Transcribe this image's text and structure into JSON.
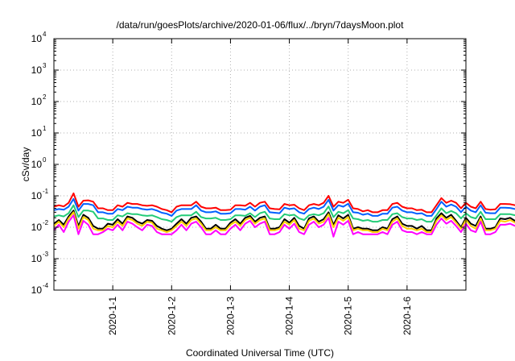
{
  "chart_data": {
    "type": "line",
    "title": "/data/run/goesPlots/archive/2020-01-06/flux/../bryn/7daysMoon.plot",
    "xlabel": "Coordinated Universal Time (UTC)",
    "ylabel": "cSv/day",
    "yscale": "log",
    "ylim": [
      0.0001,
      10000
    ],
    "y_ticks": [
      {
        "base": "10",
        "exp": "4"
      },
      {
        "base": "10",
        "exp": "3"
      },
      {
        "base": "10",
        "exp": "2"
      },
      {
        "base": "10",
        "exp": "1"
      },
      {
        "base": "10",
        "exp": "0"
      },
      {
        "base": "10",
        "exp": "-1"
      },
      {
        "base": "10",
        "exp": "-2"
      },
      {
        "base": "10",
        "exp": "-3"
      },
      {
        "base": "10",
        "exp": "-4"
      }
    ],
    "x_range": [
      "2019-12-31T00:00",
      "2020-01-07T00:00"
    ],
    "x_ticks": [
      "2020-1-1",
      "2020-1-2",
      "2020-1-3",
      "2020-1-4",
      "2020-1-5",
      "2020-1-6"
    ],
    "grid": true,
    "sample_interval_hours": 2,
    "series": [
      {
        "color": "#ff0000",
        "values": [
          0.045,
          0.05,
          0.046,
          0.06,
          0.12,
          0.045,
          0.07,
          0.072,
          0.065,
          0.04,
          0.04,
          0.035,
          0.035,
          0.05,
          0.045,
          0.06,
          0.055,
          0.055,
          0.05,
          0.048,
          0.05,
          0.045,
          0.038,
          0.035,
          0.03,
          0.045,
          0.05,
          0.05,
          0.05,
          0.065,
          0.045,
          0.04,
          0.04,
          0.042,
          0.035,
          0.035,
          0.036,
          0.05,
          0.05,
          0.048,
          0.06,
          0.045,
          0.06,
          0.065,
          0.04,
          0.038,
          0.037,
          0.055,
          0.05,
          0.052,
          0.04,
          0.035,
          0.05,
          0.055,
          0.05,
          0.06,
          0.1,
          0.045,
          0.065,
          0.06,
          0.075,
          0.04,
          0.038,
          0.032,
          0.035,
          0.03,
          0.03,
          0.035,
          0.035,
          0.055,
          0.06,
          0.045,
          0.04,
          0.04,
          0.035,
          0.036,
          0.03,
          0.03,
          0.05,
          0.085,
          0.06,
          0.07,
          0.06,
          0.04,
          0.06,
          0.045,
          0.04,
          0.065,
          0.038,
          0.036,
          0.037,
          0.055,
          0.055,
          0.054,
          0.05,
          0.05,
          0.045,
          0.04,
          0.035,
          0.05,
          0.05,
          0.035,
          0.035,
          0.035,
          0.03,
          0.032,
          0.028,
          0.025,
          0.025,
          0.025,
          0.05,
          0.05,
          0.045,
          0.06,
          0.07,
          0.06,
          0.062,
          0.085,
          0.065,
          0.055,
          0.065,
          0.07,
          0.05,
          0.05,
          0.045,
          0.03,
          0.045,
          0.04,
          0.03,
          0.03,
          0.04,
          0.04,
          0.035,
          0.03,
          0.045,
          0.035,
          0.035,
          0.04,
          0.045,
          0.05,
          0.055,
          0.06,
          0.065,
          0.055,
          0.05,
          0.045,
          0.04,
          0.042,
          0.04,
          0.045,
          0.042,
          0.04,
          0.045,
          0.05,
          0.05
        ]
      },
      {
        "color": "#0060ff",
        "values": [
          0.035,
          0.038,
          0.036,
          0.045,
          0.08,
          0.034,
          0.055,
          0.055,
          0.05,
          0.03,
          0.03,
          0.027,
          0.027,
          0.038,
          0.035,
          0.045,
          0.042,
          0.042,
          0.038,
          0.036,
          0.038,
          0.034,
          0.029,
          0.027,
          0.023,
          0.034,
          0.038,
          0.038,
          0.038,
          0.05,
          0.034,
          0.03,
          0.03,
          0.032,
          0.027,
          0.027,
          0.028,
          0.038,
          0.038,
          0.036,
          0.045,
          0.034,
          0.045,
          0.05,
          0.03,
          0.029,
          0.028,
          0.042,
          0.038,
          0.04,
          0.03,
          0.027,
          0.038,
          0.042,
          0.038,
          0.045,
          0.075,
          0.034,
          0.05,
          0.045,
          0.056,
          0.03,
          0.029,
          0.025,
          0.027,
          0.023,
          0.023,
          0.027,
          0.027,
          0.042,
          0.045,
          0.034,
          0.03,
          0.03,
          0.027,
          0.028,
          0.023,
          0.023,
          0.038,
          0.065,
          0.045,
          0.053,
          0.045,
          0.03,
          0.045,
          0.034,
          0.03,
          0.05,
          0.029,
          0.028,
          0.028,
          0.042,
          0.042,
          0.041,
          0.038,
          0.038,
          0.034,
          0.03,
          0.027,
          0.038,
          0.038,
          0.027,
          0.027,
          0.027,
          0.023,
          0.025,
          0.021,
          0.019,
          0.019,
          0.019,
          0.038,
          0.038,
          0.034,
          0.045,
          0.053,
          0.045,
          0.047,
          0.065,
          0.05,
          0.042,
          0.05,
          0.053,
          0.038,
          0.038,
          0.034,
          0.023,
          0.034,
          0.03,
          0.023,
          0.023,
          0.03,
          0.03,
          0.027,
          0.023,
          0.034,
          0.027,
          0.027,
          0.03,
          0.034,
          0.038,
          0.042,
          0.045,
          0.05,
          0.042,
          0.038,
          0.034,
          0.03,
          0.032,
          0.03,
          0.034,
          0.032,
          0.03,
          0.034,
          0.038,
          0.038
        ]
      },
      {
        "color": "#22cc77",
        "values": [
          0.022,
          0.024,
          0.022,
          0.028,
          0.05,
          0.021,
          0.034,
          0.034,
          0.031,
          0.019,
          0.019,
          0.017,
          0.017,
          0.024,
          0.022,
          0.028,
          0.026,
          0.026,
          0.024,
          0.023,
          0.024,
          0.021,
          0.018,
          0.017,
          0.015,
          0.021,
          0.024,
          0.024,
          0.024,
          0.031,
          0.021,
          0.019,
          0.019,
          0.02,
          0.017,
          0.017,
          0.018,
          0.024,
          0.024,
          0.023,
          0.028,
          0.021,
          0.028,
          0.031,
          0.019,
          0.018,
          0.018,
          0.026,
          0.024,
          0.025,
          0.019,
          0.017,
          0.024,
          0.026,
          0.024,
          0.028,
          0.046,
          0.021,
          0.031,
          0.028,
          0.035,
          0.019,
          0.018,
          0.016,
          0.017,
          0.015,
          0.015,
          0.017,
          0.017,
          0.026,
          0.028,
          0.021,
          0.019,
          0.019,
          0.017,
          0.018,
          0.015,
          0.015,
          0.024,
          0.04,
          0.028,
          0.033,
          0.028,
          0.019,
          0.028,
          0.021,
          0.019,
          0.031,
          0.018,
          0.018,
          0.018,
          0.026,
          0.026,
          0.026,
          0.024,
          0.024,
          0.021,
          0.019,
          0.017,
          0.024,
          0.024,
          0.017,
          0.017,
          0.017,
          0.015,
          0.016,
          0.014,
          0.013,
          0.013,
          0.013,
          0.024,
          0.024,
          0.021,
          0.028,
          0.033,
          0.028,
          0.029,
          0.04,
          0.031,
          0.026,
          0.031,
          0.033,
          0.024,
          0.024,
          0.021,
          0.015,
          0.021,
          0.019,
          0.015,
          0.015,
          0.019,
          0.019,
          0.017,
          0.015,
          0.021,
          0.017,
          0.017,
          0.019,
          0.021,
          0.024,
          0.026,
          0.028,
          0.031,
          0.026,
          0.024,
          0.021,
          0.019,
          0.02,
          0.019,
          0.021,
          0.02,
          0.019,
          0.021,
          0.024,
          0.024
        ]
      },
      {
        "color": "#000000",
        "values": [
          0.013,
          0.017,
          0.012,
          0.022,
          0.034,
          0.011,
          0.025,
          0.02,
          0.011,
          0.009,
          0.009,
          0.013,
          0.012,
          0.018,
          0.013,
          0.022,
          0.02,
          0.015,
          0.013,
          0.017,
          0.016,
          0.011,
          0.009,
          0.008,
          0.009,
          0.013,
          0.018,
          0.013,
          0.02,
          0.022,
          0.015,
          0.009,
          0.009,
          0.012,
          0.009,
          0.009,
          0.014,
          0.018,
          0.013,
          0.02,
          0.023,
          0.015,
          0.02,
          0.022,
          0.009,
          0.009,
          0.01,
          0.018,
          0.014,
          0.02,
          0.011,
          0.009,
          0.019,
          0.022,
          0.015,
          0.018,
          0.03,
          0.012,
          0.024,
          0.019,
          0.025,
          0.009,
          0.01,
          0.009,
          0.009,
          0.008,
          0.008,
          0.01,
          0.009,
          0.018,
          0.022,
          0.013,
          0.011,
          0.011,
          0.009,
          0.011,
          0.008,
          0.008,
          0.019,
          0.028,
          0.02,
          0.025,
          0.016,
          0.01,
          0.02,
          0.013,
          0.011,
          0.022,
          0.009,
          0.009,
          0.01,
          0.019,
          0.018,
          0.02,
          0.016,
          0.018,
          0.013,
          0.011,
          0.009,
          0.018,
          0.016,
          0.009,
          0.009,
          0.01,
          0.008,
          0.009,
          0.008,
          0.009,
          0.011,
          0.009,
          0.02,
          0.017,
          0.013,
          0.019,
          0.022,
          0.018,
          0.02,
          0.026,
          0.019,
          0.016,
          0.02,
          0.024,
          0.016,
          0.016,
          0.013,
          0.008,
          0.013,
          0.011,
          0.009,
          0.009,
          0.012,
          0.011,
          0.009,
          0.009,
          0.015,
          0.01,
          0.009,
          0.012,
          0.014,
          0.017,
          0.018,
          0.02,
          0.022,
          0.016,
          0.014,
          0.012,
          0.011,
          0.011,
          0.01,
          0.012,
          0.011,
          0.01,
          0.012,
          0.014,
          0.014
        ]
      },
      {
        "color": "#ffd000",
        "values": [
          0.011,
          0.015,
          0.01,
          0.019,
          0.03,
          0.009,
          0.021,
          0.017,
          0.009,
          0.008,
          0.008,
          0.011,
          0.01,
          0.015,
          0.011,
          0.019,
          0.017,
          0.013,
          0.011,
          0.015,
          0.014,
          0.009,
          0.008,
          0.007,
          0.008,
          0.011,
          0.015,
          0.011,
          0.017,
          0.019,
          0.013,
          0.008,
          0.008,
          0.01,
          0.008,
          0.008,
          0.012,
          0.015,
          0.011,
          0.017,
          0.02,
          0.013,
          0.017,
          0.019,
          0.008,
          0.008,
          0.009,
          0.015,
          0.012,
          0.017,
          0.009,
          0.008,
          0.016,
          0.019,
          0.013,
          0.015,
          0.026,
          0.01,
          0.02,
          0.016,
          0.021,
          0.008,
          0.009,
          0.008,
          0.008,
          0.007,
          0.007,
          0.009,
          0.008,
          0.015,
          0.019,
          0.011,
          0.009,
          0.009,
          0.008,
          0.009,
          0.007,
          0.007,
          0.016,
          0.024,
          0.017,
          0.021,
          0.014,
          0.009,
          0.017,
          0.011,
          0.009,
          0.019,
          0.008,
          0.008,
          0.009,
          0.016,
          0.015,
          0.017,
          0.014,
          0.015,
          0.011,
          0.009,
          0.008,
          0.015,
          0.014,
          0.008,
          0.008,
          0.009,
          0.007,
          0.008,
          0.007,
          0.008,
          0.009,
          0.008,
          0.017,
          0.015,
          0.011,
          0.016,
          0.019,
          0.015,
          0.017,
          0.022,
          0.016,
          0.014,
          0.017,
          0.02,
          0.014,
          0.014,
          0.011,
          0.007,
          0.011,
          0.009,
          0.008,
          0.008,
          0.01,
          0.009,
          0.008,
          0.008,
          0.013,
          0.009,
          0.008,
          0.01,
          0.012,
          0.015,
          0.015,
          0.017,
          0.019,
          0.014,
          0.012,
          0.01,
          0.009,
          0.009,
          0.009,
          0.01,
          0.009,
          0.009,
          0.01,
          0.012,
          0.012
        ]
      },
      {
        "color": "#ff00ff",
        "values": [
          0.008,
          0.012,
          0.007,
          0.015,
          0.024,
          0.006,
          0.016,
          0.012,
          0.006,
          0.006,
          0.007,
          0.009,
          0.008,
          0.012,
          0.008,
          0.015,
          0.013,
          0.01,
          0.008,
          0.012,
          0.011,
          0.007,
          0.006,
          0.006,
          0.006,
          0.008,
          0.012,
          0.008,
          0.013,
          0.015,
          0.01,
          0.006,
          0.006,
          0.008,
          0.006,
          0.006,
          0.009,
          0.012,
          0.008,
          0.013,
          0.016,
          0.01,
          0.013,
          0.015,
          0.006,
          0.006,
          0.007,
          0.012,
          0.009,
          0.013,
          0.007,
          0.006,
          0.012,
          0.015,
          0.01,
          0.012,
          0.02,
          0.005,
          0.015,
          0.012,
          0.016,
          0.006,
          0.007,
          0.006,
          0.006,
          0.006,
          0.006,
          0.007,
          0.006,
          0.012,
          0.015,
          0.008,
          0.007,
          0.007,
          0.006,
          0.007,
          0.006,
          0.006,
          0.012,
          0.019,
          0.013,
          0.016,
          0.011,
          0.007,
          0.013,
          0.008,
          0.007,
          0.015,
          0.006,
          0.006,
          0.007,
          0.012,
          0.012,
          0.013,
          0.011,
          0.012,
          0.008,
          0.007,
          0.006,
          0.012,
          0.011,
          0.006,
          0.006,
          0.007,
          0.006,
          0.006,
          0.006,
          0.006,
          0.007,
          0.006,
          0.013,
          0.012,
          0.008,
          0.012,
          0.015,
          0.012,
          0.013,
          0.017,
          0.012,
          0.011,
          0.013,
          0.016,
          0.011,
          0.011,
          0.008,
          0.006,
          0.008,
          0.007,
          0.006,
          0.006,
          0.008,
          0.007,
          0.006,
          0.006,
          0.01,
          0.007,
          0.006,
          0.008,
          0.009,
          0.012,
          0.012,
          0.013,
          0.015,
          0.011,
          0.009,
          0.008,
          0.007,
          0.007,
          0.007,
          0.008,
          0.007,
          0.007,
          0.008,
          0.009,
          0.009
        ]
      }
    ]
  }
}
